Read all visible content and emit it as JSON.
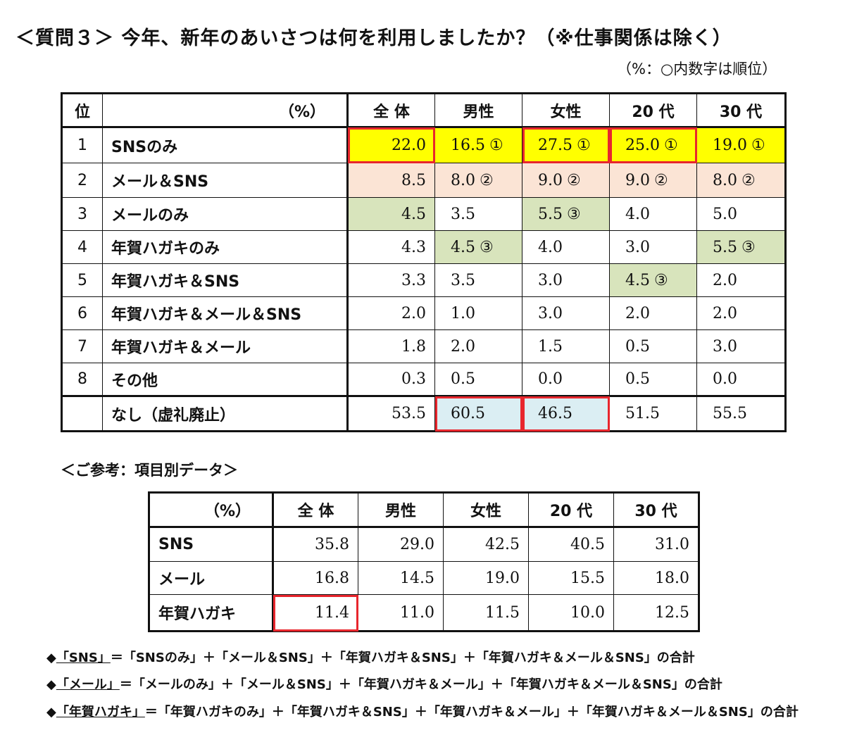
{
  "title": "＜質問３＞ 今年、新年のあいさつは何を利用しましたか？（※仕事関係は除く）",
  "unit_note": "（%：○内数字は順位）",
  "main_table": {
    "unit_header": "（%）",
    "columns": [
      "全 体",
      "男性",
      "女性",
      "20 代",
      "30 代"
    ],
    "rows": [
      {
        "rank": "1",
        "label": "SNSのみ",
        "values": [
          "22.0",
          "16.5",
          "27.5",
          "25.0",
          "19.0"
        ],
        "ranks": [
          "",
          "①",
          "①",
          "①",
          "①"
        ]
      },
      {
        "rank": "2",
        "label": "メール＆SNS",
        "values": [
          "8.5",
          "8.0",
          "9.0",
          "9.0",
          "8.0"
        ],
        "ranks": [
          "",
          "②",
          "②",
          "②",
          "②"
        ]
      },
      {
        "rank": "3",
        "label": "メールのみ",
        "values": [
          "4.5",
          "3.5",
          "5.5",
          "4.0",
          "5.0"
        ],
        "ranks": [
          "",
          "",
          "③",
          "",
          ""
        ]
      },
      {
        "rank": "4",
        "label": "年賀ハガキのみ",
        "values": [
          "4.3",
          "4.5",
          "4.0",
          "3.0",
          "5.5"
        ],
        "ranks": [
          "",
          "③",
          "",
          "",
          "③"
        ]
      },
      {
        "rank": "5",
        "label": "年賀ハガキ＆SNS",
        "values": [
          "3.3",
          "3.5",
          "3.0",
          "4.5",
          "2.0"
        ],
        "ranks": [
          "",
          "",
          "",
          "③",
          ""
        ]
      },
      {
        "rank": "6",
        "label": "年賀ハガキ＆メール＆SNS",
        "values": [
          "2.0",
          "1.0",
          "3.0",
          "2.0",
          "2.0"
        ],
        "ranks": [
          "",
          "",
          "",
          "",
          ""
        ]
      },
      {
        "rank": "7",
        "label": "年賀ハガキ＆メール",
        "values": [
          "1.8",
          "2.0",
          "1.5",
          "0.5",
          "3.0"
        ],
        "ranks": [
          "",
          "",
          "",
          "",
          ""
        ]
      },
      {
        "rank": "8",
        "label": "その他",
        "values": [
          "0.3",
          "0.5",
          "0.0",
          "0.5",
          "0.0"
        ],
        "ranks": [
          "",
          "",
          "",
          "",
          ""
        ]
      }
    ],
    "none_row": {
      "label": "なし（虚礼廃止）",
      "values": [
        "53.5",
        "60.5",
        "46.5",
        "51.5",
        "55.5"
      ]
    }
  },
  "ref_title": "＜ご参考：項目別データ＞",
  "ref_table": {
    "unit_header": "（%）",
    "columns": [
      "全 体",
      "男性",
      "女性",
      "20 代",
      "30 代"
    ],
    "rows": [
      {
        "label": "SNS",
        "values": [
          "35.8",
          "29.0",
          "42.5",
          "40.5",
          "31.0"
        ]
      },
      {
        "label": "メール",
        "values": [
          "16.8",
          "14.5",
          "19.0",
          "15.5",
          "18.0"
        ]
      },
      {
        "label": "年賀ハガキ",
        "values": [
          "11.4",
          "11.0",
          "11.5",
          "10.0",
          "12.5"
        ]
      }
    ]
  },
  "notes": [
    {
      "key": "「SNS」",
      "text": "＝「SNSのみ」＋「メール＆SNS」＋「年賀ハガキ＆SNS」＋「年賀ハガキ＆メール＆SNS」の合計"
    },
    {
      "key": "「メール」",
      "text": "＝「メールのみ」＋「メール＆SNS」＋「年賀ハガキ＆メール」＋「年賀ハガキ＆メール＆SNS」の合計"
    },
    {
      "key": "「年賀ハガキ」",
      "text": "＝「年賀ハガキのみ」＋「年賀ハガキ＆SNS」＋「年賀ハガキ＆メール」＋「年賀ハガキ＆メール＆SNS」の合計"
    }
  ],
  "colors": {
    "yellow": "#ffff00",
    "peach": "#fbe4d5",
    "green": "#d8e4bc",
    "blue": "#dbeef3",
    "highlight_border": "#e8262d"
  }
}
